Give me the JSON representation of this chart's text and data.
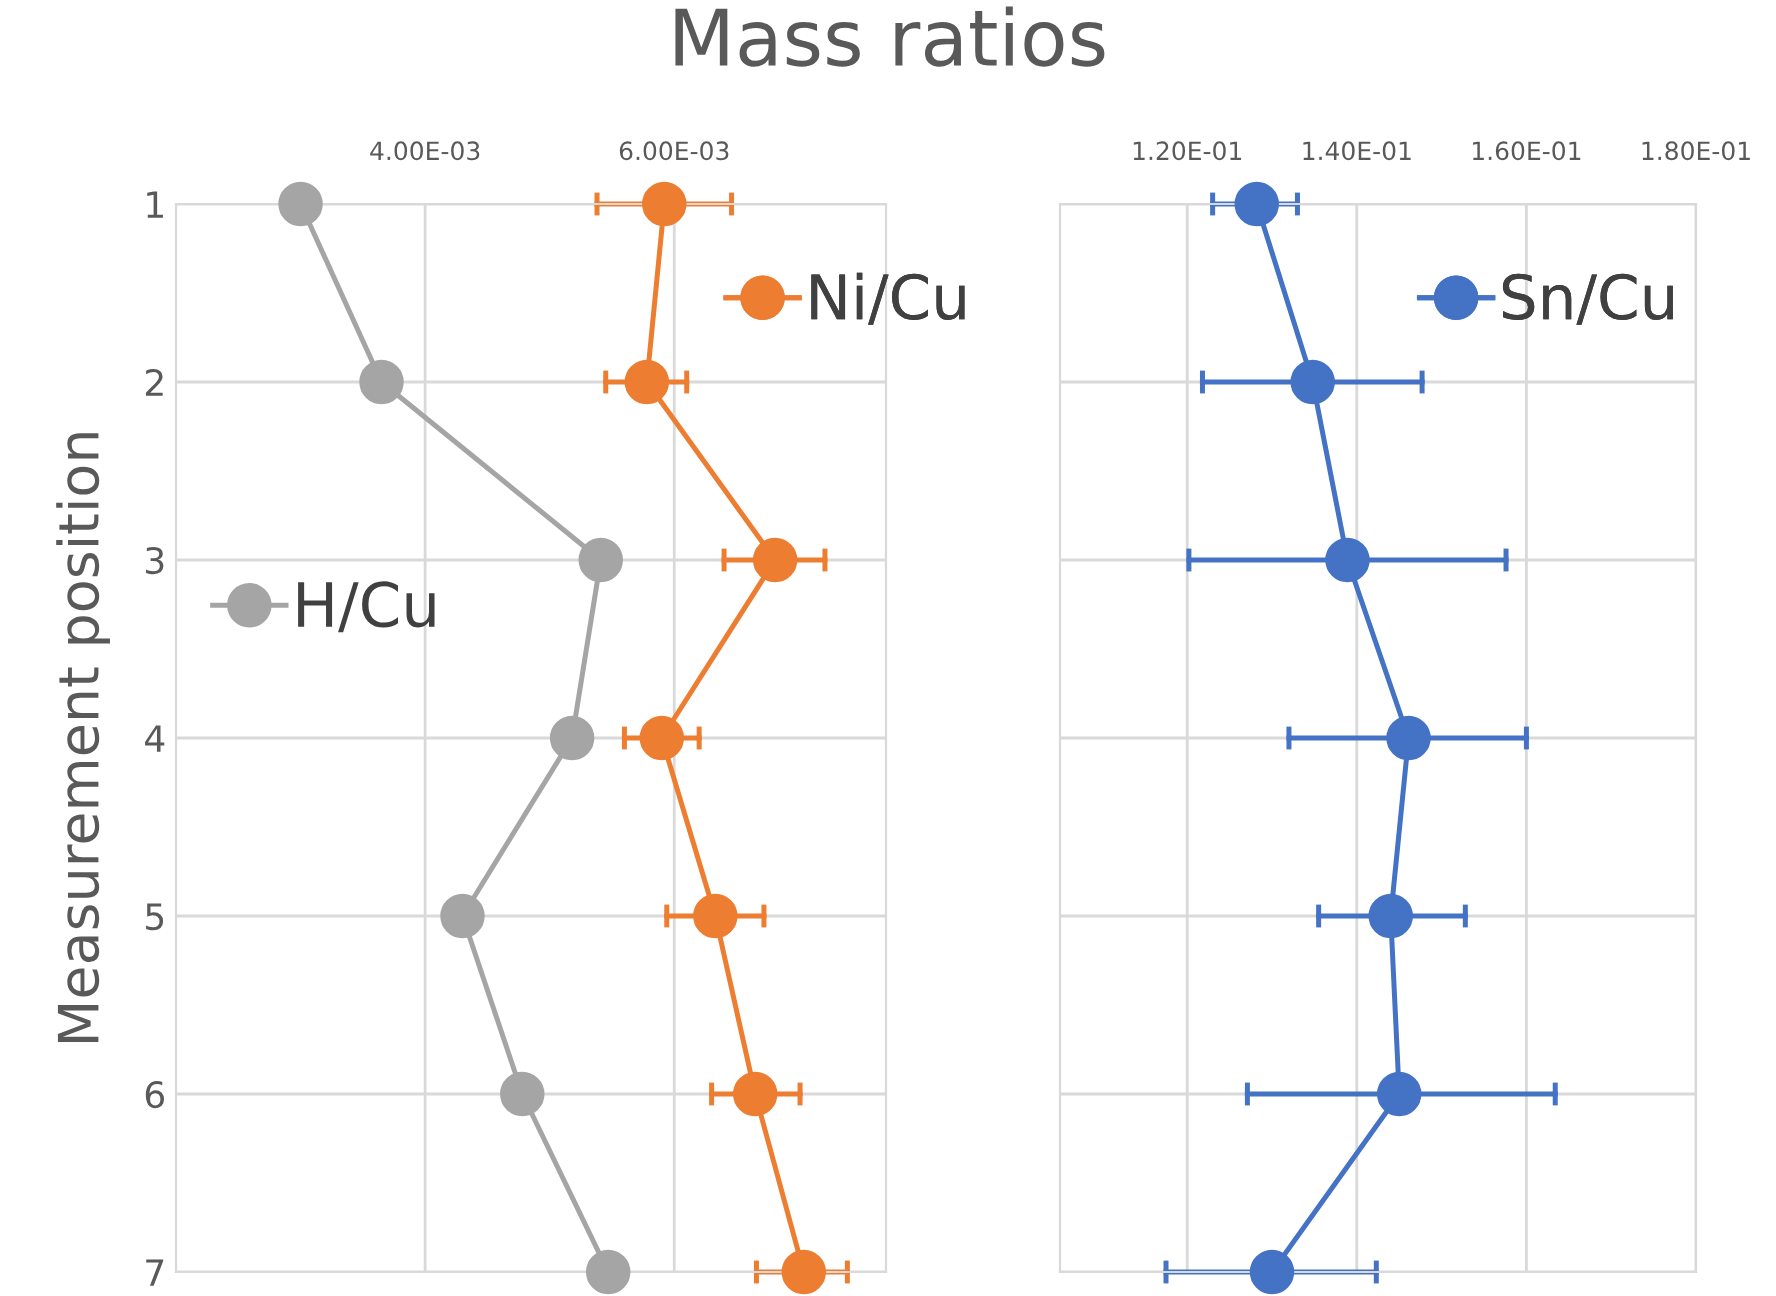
{
  "chart_data": [
    {
      "type": "line",
      "title": "Mass ratios",
      "ylabel": "Measurement position",
      "orientation": "horizontal",
      "categories": [
        "1",
        "2",
        "3",
        "4",
        "5",
        "6",
        "7"
      ],
      "xlim": [
        0.002,
        0.0077
      ],
      "xticks": [
        {
          "value": 0.004,
          "label": "4.00E-03"
        },
        {
          "value": 0.006,
          "label": "6.00E-03"
        }
      ],
      "grid": true,
      "marker": "circle",
      "legend": "top right",
      "series": [
        {
          "name": "H/Cu",
          "color": "#a5a5a5",
          "values": [
            0.003,
            0.00365,
            0.00541,
            0.00518,
            0.0043,
            0.00478,
            0.00547
          ]
        },
        {
          "name": "Ni/Cu",
          "color": "#ed7d31",
          "values": [
            0.00592,
            0.00578,
            0.00681,
            0.0059,
            0.00633,
            0.00665,
            0.00704
          ],
          "errors": [
            [
              0.00538,
              0.00646
            ],
            [
              0.00545,
              0.0061
            ],
            [
              0.0064,
              0.00721
            ],
            [
              0.0056,
              0.0062
            ],
            [
              0.00594,
              0.00672
            ],
            [
              0.0063,
              0.00701
            ],
            [
              0.00666,
              0.00739
            ]
          ]
        }
      ]
    },
    {
      "type": "line",
      "orientation": "horizontal",
      "tick_labels": "x",
      "categories": [
        "1",
        "2",
        "3",
        "4",
        "5",
        "6",
        "7"
      ],
      "xlim": [
        0.105,
        0.18
      ],
      "xticks": [
        {
          "value": 0.12,
          "label": "1.20E-01"
        },
        {
          "value": 0.14,
          "label": "1.40E-01"
        },
        {
          "value": 0.16,
          "label": "1.60E-01"
        },
        {
          "value": 0.18,
          "label": "1.80E-01"
        }
      ],
      "grid": true,
      "marker": "circle",
      "legend": "top right",
      "series": [
        {
          "name": "Sn/Cu",
          "color": "#4472c4",
          "values": [
            0.1282,
            0.1348,
            0.1389,
            0.1461,
            0.144,
            0.145,
            0.13
          ],
          "errors": [
            [
              0.123,
              0.133
            ],
            [
              0.1218,
              0.1477
            ],
            [
              0.1202,
              0.1576
            ],
            [
              0.132,
              0.16
            ],
            [
              0.1355,
              0.1528
            ],
            [
              0.1271,
              0.1634
            ],
            [
              0.1175,
              0.1423
            ]
          ]
        }
      ]
    }
  ]
}
